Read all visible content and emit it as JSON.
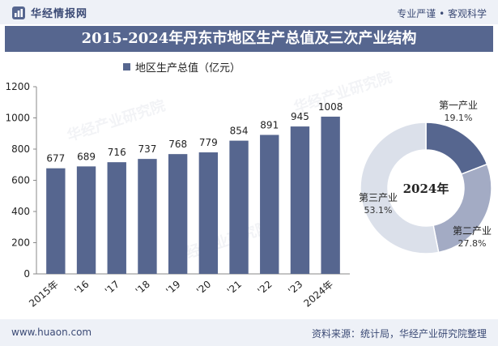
{
  "header": {
    "brand": "华经情报网",
    "slogan": "专业严谨 • 客观科学"
  },
  "title": "2015-2024年丹东市地区生产总值及三次产业结构",
  "watermark": "华经产业研究院",
  "colors": {
    "primary": "#56668f",
    "secondary": "#a3abc4",
    "tertiary": "#dbe0ea",
    "band": "#eef1f7"
  },
  "chart_data": [
    {
      "type": "bar",
      "legend": "地区生产总值（亿元）",
      "categories": [
        "2015年",
        "'16",
        "'17",
        "'18",
        "'19",
        "'20",
        "'21",
        "'22",
        "'23",
        "2024年"
      ],
      "series": [
        {
          "name": "地区生产总值（亿元）",
          "values": [
            677,
            689,
            716,
            737,
            768,
            779,
            854,
            891,
            945,
            1008
          ]
        }
      ],
      "y_ticks": [
        0,
        200,
        400,
        600,
        800,
        1000,
        1200
      ],
      "ylim": [
        0,
        1200
      ],
      "grid": false
    },
    {
      "type": "pie",
      "center_label": "2024年",
      "slices": [
        {
          "label": "第一产业",
          "value": 19.1,
          "value_label": "19.1%",
          "color": "#56668f"
        },
        {
          "label": "第二产业",
          "value": 27.8,
          "value_label": "27.8%",
          "color": "#a3abc4"
        },
        {
          "label": "第三产业",
          "value": 53.1,
          "value_label": "53.1%",
          "color": "#dbe0ea"
        }
      ]
    }
  ],
  "footer": {
    "url": "www.huaon.com",
    "source": "资料来源：统计局，华经产业研究院整理"
  }
}
